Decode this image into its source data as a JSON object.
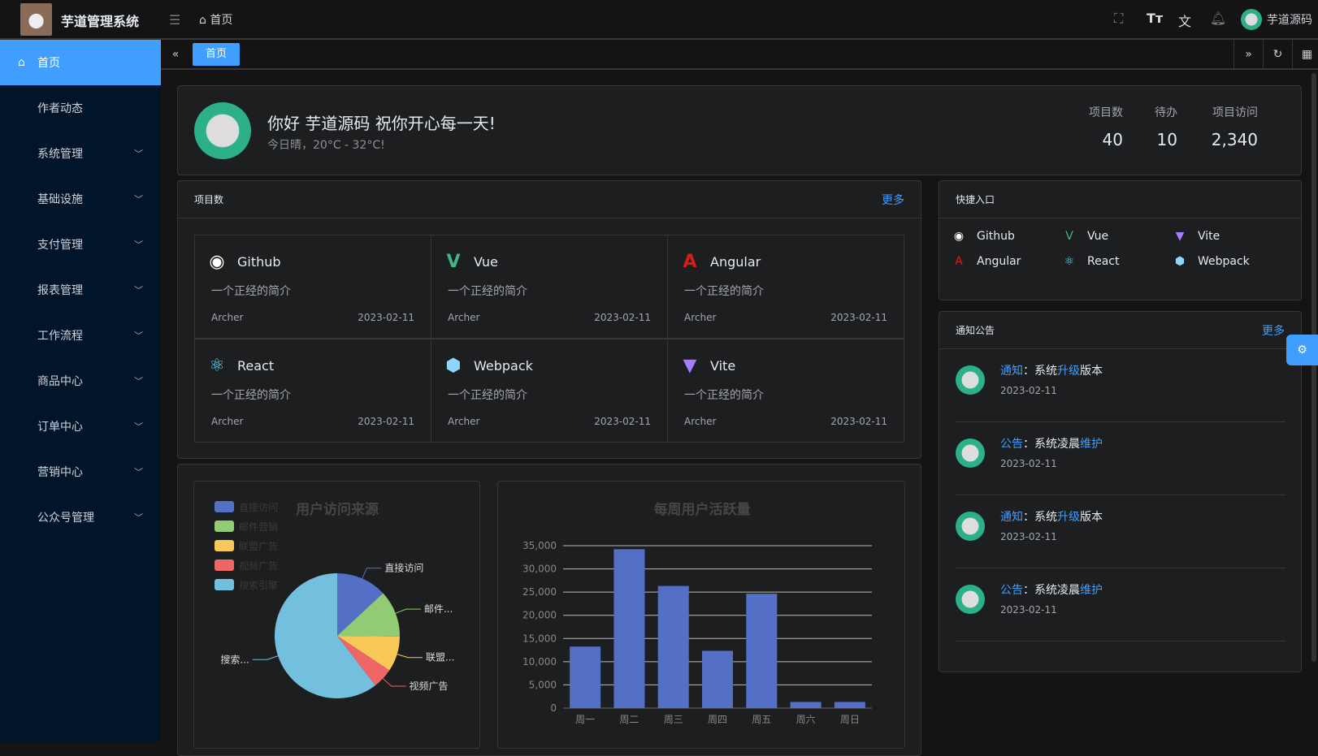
{
  "app": {
    "title": "芋道管理系统",
    "breadcrumb": "首页",
    "user": "芋道源码"
  },
  "sidebar": {
    "items": [
      {
        "label": "首页",
        "active": true
      },
      {
        "label": "作者动态"
      },
      {
        "label": "系统管理",
        "expandable": true
      },
      {
        "label": "基础设施",
        "expandable": true
      },
      {
        "label": "支付管理",
        "expandable": true
      },
      {
        "label": "报表管理",
        "expandable": true
      },
      {
        "label": "工作流程",
        "expandable": true
      },
      {
        "label": "商品中心",
        "expandable": true
      },
      {
        "label": "订单中心",
        "expandable": true
      },
      {
        "label": "营销中心",
        "expandable": true
      },
      {
        "label": "公众号管理",
        "expandable": true
      }
    ]
  },
  "tabs": [
    {
      "label": "首页",
      "active": true
    }
  ],
  "welcome": {
    "greeting": "你好 芋道源码 祝你开心每一天!",
    "weather": "今日晴，20°C - 32°C!",
    "stats": [
      {
        "label": "项目数",
        "value": "40"
      },
      {
        "label": "待办",
        "value": "10"
      },
      {
        "label": "项目访问",
        "value": "2,340"
      }
    ]
  },
  "projects": {
    "title": "项目数",
    "more": "更多",
    "items": [
      {
        "name": "Github",
        "icon": "github-icon",
        "color": "#ffffff",
        "desc": "一个正经的简介",
        "author": "Archer",
        "date": "2023-02-11"
      },
      {
        "name": "Vue",
        "icon": "vue-icon",
        "color": "#42b883",
        "desc": "一个正经的简介",
        "author": "Archer",
        "date": "2023-02-11"
      },
      {
        "name": "Angular",
        "icon": "angular-icon",
        "color": "#dd1b16",
        "desc": "一个正经的简介",
        "author": "Archer",
        "date": "2023-02-11"
      },
      {
        "name": "React",
        "icon": "react-icon",
        "color": "#61dafb",
        "desc": "一个正经的简介",
        "author": "Archer",
        "date": "2023-02-11"
      },
      {
        "name": "Webpack",
        "icon": "webpack-icon",
        "color": "#8ed6fb",
        "desc": "一个正经的简介",
        "author": "Archer",
        "date": "2023-02-11"
      },
      {
        "name": "Vite",
        "icon": "vite-icon",
        "color": "#a57dff",
        "desc": "一个正经的简介",
        "author": "Archer",
        "date": "2023-02-11"
      }
    ]
  },
  "quick": {
    "title": "快捷入口",
    "items": [
      {
        "name": "Github",
        "color": "#ffffff"
      },
      {
        "name": "Vue",
        "color": "#42b883"
      },
      {
        "name": "Vite",
        "color": "#a57dff"
      },
      {
        "name": "Angular",
        "color": "#dd1b16"
      },
      {
        "name": "React",
        "color": "#61dafb"
      },
      {
        "name": "Webpack",
        "color": "#8ed6fb"
      }
    ]
  },
  "notices": {
    "title": "通知公告",
    "more": "更多",
    "items": [
      {
        "type": "通知",
        "pre": "：系统",
        "hl": "升级",
        "post": "版本",
        "date": "2023-02-11"
      },
      {
        "type": "公告",
        "pre": "：系统凌晨",
        "hl": "维护",
        "post": "",
        "date": "2023-02-11"
      },
      {
        "type": "通知",
        "pre": "：系统",
        "hl": "升级",
        "post": "版本",
        "date": "2023-02-11"
      },
      {
        "type": "公告",
        "pre": "：系统凌晨",
        "hl": "维护",
        "post": "",
        "date": "2023-02-11"
      }
    ]
  },
  "chart_data": [
    {
      "type": "pie",
      "title": "用户访问来源",
      "legend_position": "top-left",
      "categories": [
        "直接访问",
        "邮件营销",
        "联盟广告",
        "视频广告",
        "搜索引擎"
      ],
      "values": [
        335,
        310,
        234,
        135,
        1548
      ],
      "colors": [
        "#5470c6",
        "#91cc75",
        "#fac858",
        "#ee6666",
        "#73c0de"
      ],
      "slice_labels": [
        "直接访问",
        "邮件...",
        "联盟...",
        "视频广告",
        "搜索..."
      ]
    },
    {
      "type": "bar",
      "title": "每周用户活跃量",
      "categories": [
        "周一",
        "周二",
        "周三",
        "周四",
        "周五",
        "周六",
        "周日"
      ],
      "values": [
        13253,
        34235,
        26321,
        12340,
        24643,
        1322,
        1324
      ],
      "ylim": [
        0,
        35000
      ],
      "yticks": [
        "0",
        "5,000",
        "10,000",
        "15,000",
        "20,000",
        "25,000",
        "30,000",
        "35,000"
      ],
      "grid": true,
      "color": "#5470c6"
    }
  ]
}
